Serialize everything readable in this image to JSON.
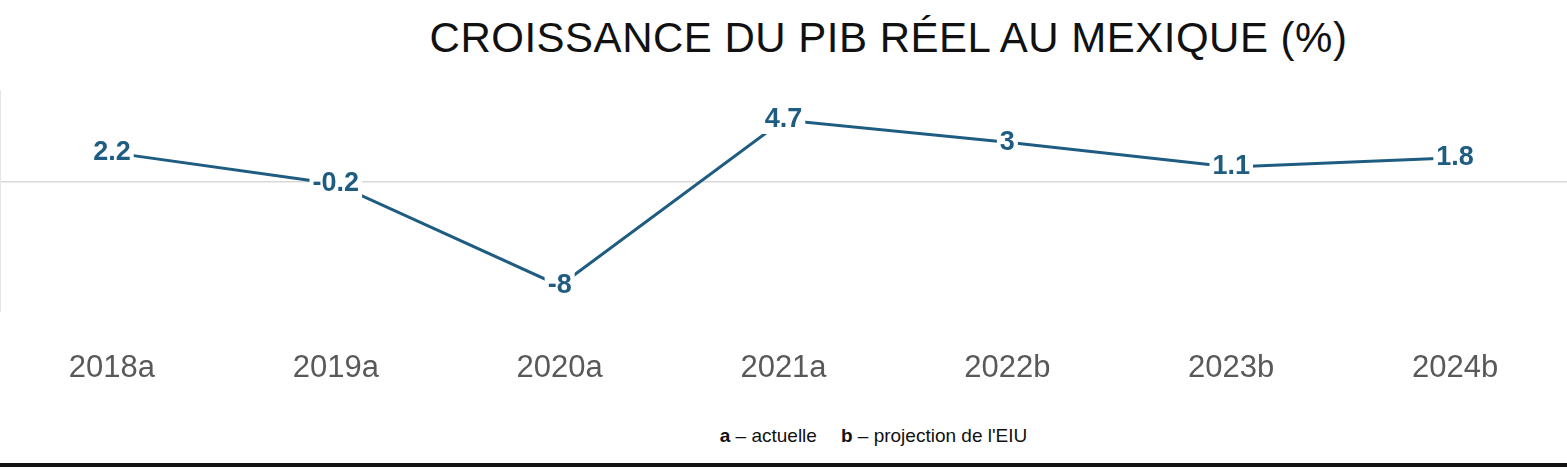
{
  "chart_data": {
    "type": "line",
    "title": "CROISSANCE DU PIB RÉEL AU MEXIQUE (%)",
    "categories": [
      "2018a",
      "2019a",
      "2020a",
      "2021a",
      "2022b",
      "2023b",
      "2024b"
    ],
    "values": [
      2.2,
      -0.2,
      -8,
      4.7,
      3,
      1.1,
      1.8
    ],
    "color": "#1f5c82",
    "ylim": [
      -10,
      7
    ],
    "yticks": [
      0
    ],
    "grid": true,
    "data_labels": true,
    "tick_labels": "x",
    "annotations": [
      "a – actuelle",
      "b – projection de l'EIU"
    ]
  }
}
